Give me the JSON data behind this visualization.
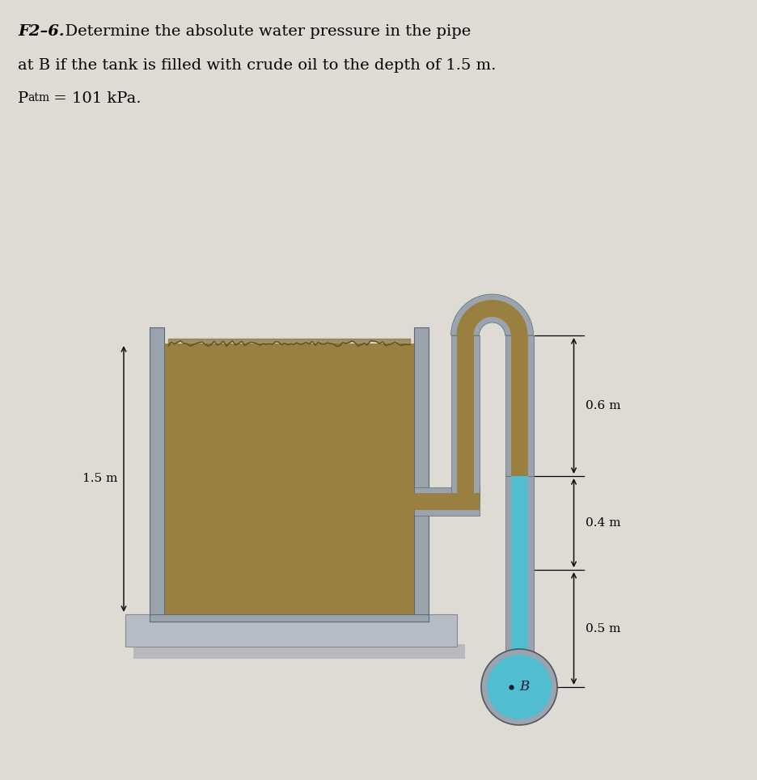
{
  "bg_color": "#dedad4",
  "tank_fill_color": "#9a8040",
  "tank_wall_color": "#9ba4ae",
  "tank_wall_dark": "#7a8490",
  "pipe_wall_color": "#9ba4ae",
  "pipe_oil_color": "#9a8040",
  "pipe_water_color": "#50bdd0",
  "ball_water_color": "#50bdd0",
  "ball_border_color": "#9ba4ae",
  "platform_color": "#b8bcc4",
  "platform_shadow": "#a0a4ac",
  "dim_color": "#111111",
  "label_15": "1.5 m",
  "label_06": "0.6 m",
  "label_04": "0.4 m",
  "label_05": "0.5 m",
  "label_B": "B",
  "title_number": "F2–6.",
  "title_line1": "  Determine the absolute water pressure in the pipe",
  "title_line2": "at B if the tank is filled with crude oil to the depth of 1.5 m.",
  "title_line3": "P",
  "title_line3b": "atm",
  "title_line3c": " = 101 kPa."
}
